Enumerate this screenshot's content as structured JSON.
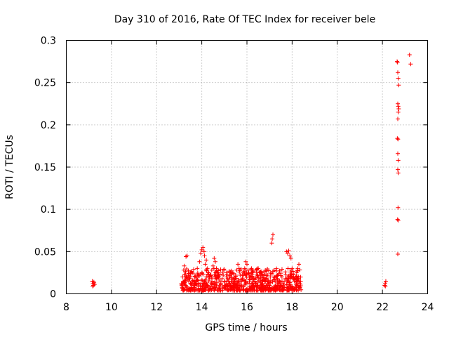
{
  "chart_data": {
    "type": "scatter",
    "title": "Day 310 of 2016, Rate Of TEC Index for receiver bele",
    "xlabel": "GPS time / hours",
    "ylabel": "ROTI / TECUs",
    "xlim": [
      8,
      24
    ],
    "ylim": [
      0,
      0.3
    ],
    "xticks": [
      8,
      10,
      12,
      14,
      16,
      18,
      20,
      22,
      24
    ],
    "yticks": [
      0,
      0.05,
      0.1,
      0.15,
      0.2,
      0.25,
      0.3
    ],
    "xtick_labels": [
      "8",
      "10",
      "12",
      "14",
      "16",
      "18",
      "20",
      "22",
      "24"
    ],
    "ytick_labels": [
      "0",
      "0.05",
      "0.1",
      "0.15",
      "0.2",
      "0.25",
      "0.3"
    ],
    "grid": true,
    "marker": "+",
    "color": "#ff0000",
    "series": [
      {
        "name": "ROTI",
        "points": [
          [
            9.15,
            0.015
          ],
          [
            9.18,
            0.012
          ],
          [
            9.2,
            0.01
          ],
          [
            9.22,
            0.014
          ],
          [
            9.25,
            0.011
          ],
          [
            9.17,
            0.009
          ],
          [
            9.23,
            0.013
          ],
          [
            13.1,
            0.012
          ],
          [
            13.15,
            0.02
          ],
          [
            13.2,
            0.028
          ],
          [
            13.22,
            0.033
          ],
          [
            13.25,
            0.015
          ],
          [
            13.3,
            0.044
          ],
          [
            13.35,
            0.045
          ],
          [
            13.4,
            0.022
          ],
          [
            13.45,
            0.018
          ],
          [
            13.5,
            0.012
          ],
          [
            13.55,
            0.025
          ],
          [
            13.6,
            0.016
          ],
          [
            13.65,
            0.01
          ],
          [
            13.7,
            0.02
          ],
          [
            13.75,
            0.014
          ],
          [
            13.8,
            0.03
          ],
          [
            13.85,
            0.022
          ],
          [
            13.9,
            0.038
          ],
          [
            13.95,
            0.048
          ],
          [
            14.0,
            0.052
          ],
          [
            14.05,
            0.055
          ],
          [
            14.1,
            0.05
          ],
          [
            14.12,
            0.045
          ],
          [
            14.15,
            0.035
          ],
          [
            14.2,
            0.04
          ],
          [
            14.25,
            0.03
          ],
          [
            14.3,
            0.025
          ],
          [
            14.35,
            0.018
          ],
          [
            14.4,
            0.022
          ],
          [
            14.45,
            0.015
          ],
          [
            14.5,
            0.033
          ],
          [
            14.55,
            0.042
          ],
          [
            14.6,
            0.038
          ],
          [
            14.65,
            0.03
          ],
          [
            14.7,
            0.025
          ],
          [
            14.75,
            0.02
          ],
          [
            14.8,
            0.015
          ],
          [
            14.85,
            0.012
          ],
          [
            14.9,
            0.018
          ],
          [
            14.95,
            0.022
          ],
          [
            15.0,
            0.015
          ],
          [
            15.05,
            0.01
          ],
          [
            15.1,
            0.025
          ],
          [
            15.15,
            0.018
          ],
          [
            15.2,
            0.012
          ],
          [
            15.25,
            0.02
          ],
          [
            15.3,
            0.015
          ],
          [
            15.35,
            0.01
          ],
          [
            15.4,
            0.013
          ],
          [
            15.45,
            0.018
          ],
          [
            15.5,
            0.022
          ],
          [
            15.55,
            0.028
          ],
          [
            15.6,
            0.035
          ],
          [
            15.65,
            0.03
          ],
          [
            15.7,
            0.022
          ],
          [
            15.75,
            0.015
          ],
          [
            15.8,
            0.018
          ],
          [
            15.85,
            0.025
          ],
          [
            15.9,
            0.03
          ],
          [
            15.95,
            0.038
          ],
          [
            16.0,
            0.035
          ],
          [
            16.05,
            0.028
          ],
          [
            16.1,
            0.022
          ],
          [
            16.15,
            0.02
          ],
          [
            16.2,
            0.03
          ],
          [
            16.25,
            0.025
          ],
          [
            16.3,
            0.018
          ],
          [
            16.35,
            0.015
          ],
          [
            16.4,
            0.012
          ],
          [
            16.45,
            0.02
          ],
          [
            16.5,
            0.03
          ],
          [
            16.55,
            0.025
          ],
          [
            16.6,
            0.018
          ],
          [
            16.65,
            0.015
          ],
          [
            16.7,
            0.012
          ],
          [
            16.75,
            0.018
          ],
          [
            16.8,
            0.015
          ],
          [
            16.85,
            0.01
          ],
          [
            16.9,
            0.012
          ],
          [
            16.95,
            0.015
          ],
          [
            17.0,
            0.01
          ],
          [
            17.05,
            0.013
          ],
          [
            17.1,
            0.06
          ],
          [
            17.12,
            0.065
          ],
          [
            17.15,
            0.07
          ],
          [
            17.2,
            0.02
          ],
          [
            17.25,
            0.015
          ],
          [
            17.3,
            0.027
          ],
          [
            17.35,
            0.018
          ],
          [
            17.4,
            0.012
          ],
          [
            17.45,
            0.015
          ],
          [
            17.5,
            0.01
          ],
          [
            17.55,
            0.02
          ],
          [
            17.6,
            0.012
          ],
          [
            17.65,
            0.015
          ],
          [
            17.7,
            0.018
          ],
          [
            17.75,
            0.05
          ],
          [
            17.8,
            0.048
          ],
          [
            17.85,
            0.051
          ],
          [
            17.9,
            0.045
          ],
          [
            17.95,
            0.042
          ],
          [
            18.0,
            0.03
          ],
          [
            18.05,
            0.018
          ],
          [
            18.1,
            0.015
          ],
          [
            18.15,
            0.02
          ],
          [
            18.2,
            0.025
          ],
          [
            18.25,
            0.03
          ],
          [
            18.3,
            0.035
          ],
          [
            18.35,
            0.012
          ],
          [
            18.38,
            0.015
          ],
          [
            22.1,
            0.01
          ],
          [
            22.12,
            0.012
          ],
          [
            22.15,
            0.015
          ],
          [
            22.13,
            0.009
          ],
          [
            22.65,
            0.275
          ],
          [
            22.67,
            0.274
          ],
          [
            22.68,
            0.262
          ],
          [
            22.7,
            0.255
          ],
          [
            22.72,
            0.247
          ],
          [
            22.68,
            0.225
          ],
          [
            22.7,
            0.222
          ],
          [
            22.72,
            0.219
          ],
          [
            22.7,
            0.215
          ],
          [
            22.68,
            0.207
          ],
          [
            22.66,
            0.184
          ],
          [
            22.69,
            0.183
          ],
          [
            22.68,
            0.166
          ],
          [
            22.7,
            0.158
          ],
          [
            22.68,
            0.147
          ],
          [
            22.7,
            0.143
          ],
          [
            22.69,
            0.102
          ],
          [
            22.67,
            0.088
          ],
          [
            22.7,
            0.087
          ],
          [
            22.68,
            0.047
          ],
          [
            23.2,
            0.283
          ],
          [
            23.25,
            0.272
          ]
        ]
      }
    ],
    "dense_clusters": [
      {
        "x_range": [
          13.1,
          18.4
        ],
        "y_range": [
          0.004,
          0.03
        ],
        "approx_count": 700
      }
    ]
  }
}
